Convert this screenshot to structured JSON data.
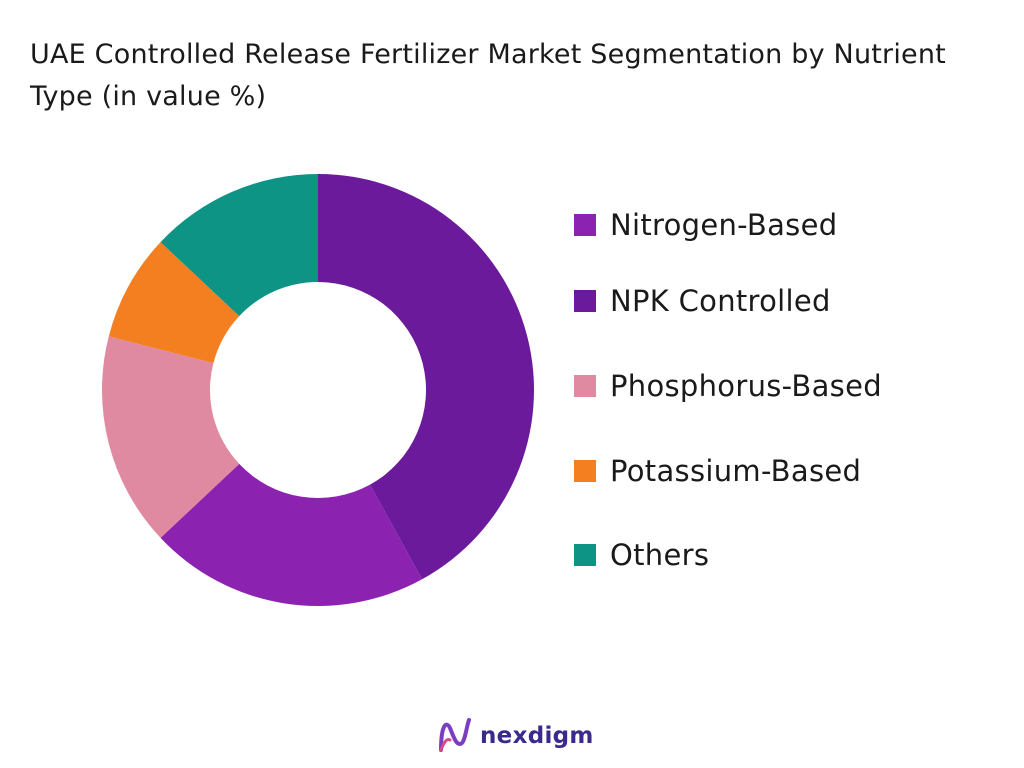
{
  "title": "UAE Controlled Release Fertilizer Market Segmentation by Nutrient Type (in value %)",
  "chart_data": {
    "type": "pie",
    "variant": "donut",
    "categories": [
      "Nitrogen-Based",
      "NPK Controlled",
      "Phosphorus-Based",
      "Potassium-Based",
      "Others"
    ],
    "values": [
      21,
      42,
      16,
      8,
      13
    ],
    "colors": [
      "#8b22b0",
      "#6a1a9a",
      "#df8aa0",
      "#f47f20",
      "#0d9484"
    ],
    "legend_position": "right"
  },
  "brand": {
    "name": "nexdigm",
    "icon": "nexdigm-logo-icon"
  }
}
